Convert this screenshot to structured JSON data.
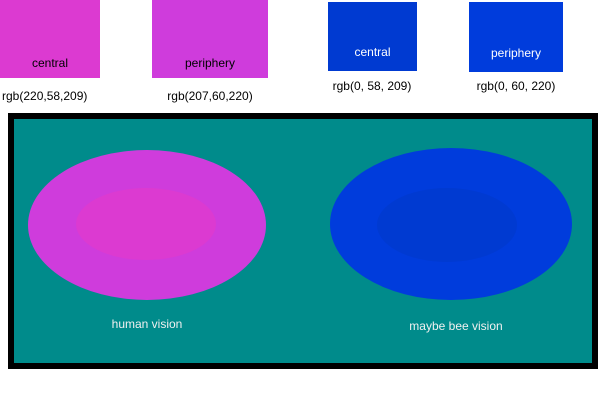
{
  "swatches": [
    {
      "id": "human-central",
      "label": "central",
      "rgb_label": "rgb(220,58,209)",
      "color": "#DC3AD1",
      "label_color": "#000000"
    },
    {
      "id": "human-periphery",
      "label": "periphery",
      "rgb_label": "rgb(207,60,220)",
      "color": "#CF3CDC",
      "label_color": "#000000"
    },
    {
      "id": "bee-central",
      "label": "central",
      "rgb_label": "rgb(0, 58, 209)",
      "color": "#003AD1",
      "label_color": "#FFFFFF"
    },
    {
      "id": "bee-periphery",
      "label": "periphery",
      "rgb_label": "rgb(0, 60, 220)",
      "color": "#003CDC",
      "label_color": "#FFFFFF"
    }
  ],
  "panel": {
    "background_color": "#008B8B",
    "border_color": "#000000",
    "label_color": "#F0F0F0",
    "groups": [
      {
        "id": "human",
        "label": "human vision",
        "periphery_color": "#CF3CDC",
        "central_color": "#DC3AD1"
      },
      {
        "id": "bee",
        "label": "maybe bee vision",
        "periphery_color": "#003CDC",
        "central_color": "#003AD1"
      }
    ]
  }
}
